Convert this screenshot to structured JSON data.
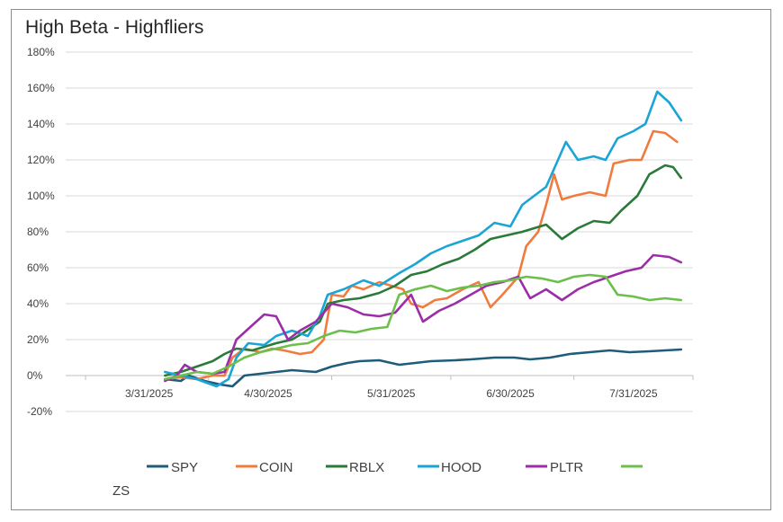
{
  "chart_data": {
    "type": "line",
    "title": "High Beta - Highfliers",
    "xlabel": "",
    "ylabel": "",
    "ylim": [
      -0.2,
      1.8
    ],
    "xlim": [
      "2025-03-10",
      "2025-08-15"
    ],
    "x_ticks": [
      "3/31/2025",
      "4/30/2025",
      "5/31/2025",
      "6/30/2025",
      "7/31/2025"
    ],
    "y_ticks": [
      "-20%",
      "0%",
      "20%",
      "40%",
      "60%",
      "80%",
      "100%",
      "120%",
      "140%",
      "160%",
      "180%"
    ],
    "grid": "horizontal",
    "legend_position": "bottom",
    "series": [
      {
        "name": "SPY",
        "color": "#1f5c7a",
        "points": [
          [
            "2025-04-04",
            -0.02
          ],
          [
            "2025-04-08",
            -0.03
          ],
          [
            "2025-04-10",
            0.0
          ],
          [
            "2025-04-14",
            -0.03
          ],
          [
            "2025-04-18",
            -0.05
          ],
          [
            "2025-04-21",
            -0.06
          ],
          [
            "2025-04-24",
            0.0
          ],
          [
            "2025-04-28",
            0.01
          ],
          [
            "2025-05-02",
            0.02
          ],
          [
            "2025-05-06",
            0.03
          ],
          [
            "2025-05-12",
            0.02
          ],
          [
            "2025-05-16",
            0.05
          ],
          [
            "2025-05-20",
            0.07
          ],
          [
            "2025-05-23",
            0.08
          ],
          [
            "2025-05-28",
            0.085
          ],
          [
            "2025-06-02",
            0.06
          ],
          [
            "2025-06-06",
            0.07
          ],
          [
            "2025-06-10",
            0.08
          ],
          [
            "2025-06-16",
            0.085
          ],
          [
            "2025-06-20",
            0.09
          ],
          [
            "2025-06-26",
            0.1
          ],
          [
            "2025-07-01",
            0.1
          ],
          [
            "2025-07-05",
            0.09
          ],
          [
            "2025-07-10",
            0.1
          ],
          [
            "2025-07-15",
            0.12
          ],
          [
            "2025-07-20",
            0.13
          ],
          [
            "2025-07-25",
            0.14
          ],
          [
            "2025-07-30",
            0.13
          ],
          [
            "2025-08-04",
            0.135
          ],
          [
            "2025-08-08",
            0.14
          ],
          [
            "2025-08-12",
            0.145
          ]
        ]
      },
      {
        "name": "COIN",
        "color": "#f07b3f",
        "points": [
          [
            "2025-04-04",
            -0.02
          ],
          [
            "2025-04-08",
            -0.01
          ],
          [
            "2025-04-12",
            -0.02
          ],
          [
            "2025-04-16",
            0.0
          ],
          [
            "2025-04-19",
            0.0
          ],
          [
            "2025-04-21",
            0.1
          ],
          [
            "2025-04-24",
            0.15
          ],
          [
            "2025-04-28",
            0.13
          ],
          [
            "2025-05-01",
            0.15
          ],
          [
            "2025-05-04",
            0.14
          ],
          [
            "2025-05-08",
            0.12
          ],
          [
            "2025-05-11",
            0.13
          ],
          [
            "2025-05-14",
            0.2
          ],
          [
            "2025-05-16",
            0.45
          ],
          [
            "2025-05-19",
            0.44
          ],
          [
            "2025-05-21",
            0.5
          ],
          [
            "2025-05-24",
            0.48
          ],
          [
            "2025-05-28",
            0.52
          ],
          [
            "2025-05-31",
            0.5
          ],
          [
            "2025-06-03",
            0.48
          ],
          [
            "2025-06-05",
            0.4
          ],
          [
            "2025-06-08",
            0.38
          ],
          [
            "2025-06-11",
            0.42
          ],
          [
            "2025-06-14",
            0.43
          ],
          [
            "2025-06-18",
            0.48
          ],
          [
            "2025-06-22",
            0.52
          ],
          [
            "2025-06-25",
            0.38
          ],
          [
            "2025-06-28",
            0.45
          ],
          [
            "2025-07-02",
            0.55
          ],
          [
            "2025-07-04",
            0.72
          ],
          [
            "2025-07-07",
            0.8
          ],
          [
            "2025-07-09",
            0.95
          ],
          [
            "2025-07-11",
            1.12
          ],
          [
            "2025-07-13",
            0.98
          ],
          [
            "2025-07-16",
            1.0
          ],
          [
            "2025-07-20",
            1.02
          ],
          [
            "2025-07-24",
            1.0
          ],
          [
            "2025-07-26",
            1.18
          ],
          [
            "2025-07-30",
            1.2
          ],
          [
            "2025-08-02",
            1.2
          ],
          [
            "2025-08-05",
            1.36
          ],
          [
            "2025-08-08",
            1.35
          ],
          [
            "2025-08-11",
            1.3
          ]
        ]
      },
      {
        "name": "RBLX",
        "color": "#2a7a39",
        "points": [
          [
            "2025-04-04",
            0.0
          ],
          [
            "2025-04-08",
            0.02
          ],
          [
            "2025-04-12",
            0.05
          ],
          [
            "2025-04-16",
            0.08
          ],
          [
            "2025-04-19",
            0.12
          ],
          [
            "2025-04-22",
            0.15
          ],
          [
            "2025-04-26",
            0.14
          ],
          [
            "2025-04-29",
            0.16
          ],
          [
            "2025-05-02",
            0.18
          ],
          [
            "2025-05-06",
            0.2
          ],
          [
            "2025-05-09",
            0.24
          ],
          [
            "2025-05-13",
            0.3
          ],
          [
            "2025-05-15",
            0.4
          ],
          [
            "2025-05-19",
            0.42
          ],
          [
            "2025-05-23",
            0.43
          ],
          [
            "2025-05-28",
            0.46
          ],
          [
            "2025-06-01",
            0.5
          ],
          [
            "2025-06-05",
            0.56
          ],
          [
            "2025-06-09",
            0.58
          ],
          [
            "2025-06-13",
            0.62
          ],
          [
            "2025-06-17",
            0.65
          ],
          [
            "2025-06-21",
            0.7
          ],
          [
            "2025-06-25",
            0.76
          ],
          [
            "2025-06-29",
            0.78
          ],
          [
            "2025-07-03",
            0.8
          ],
          [
            "2025-07-06",
            0.82
          ],
          [
            "2025-07-09",
            0.84
          ],
          [
            "2025-07-13",
            0.76
          ],
          [
            "2025-07-17",
            0.82
          ],
          [
            "2025-07-21",
            0.86
          ],
          [
            "2025-07-25",
            0.85
          ],
          [
            "2025-07-28",
            0.92
          ],
          [
            "2025-08-01",
            1.0
          ],
          [
            "2025-08-04",
            1.12
          ],
          [
            "2025-08-08",
            1.17
          ],
          [
            "2025-08-10",
            1.16
          ],
          [
            "2025-08-12",
            1.1
          ]
        ]
      },
      {
        "name": "HOOD",
        "color": "#1aa5d6",
        "points": [
          [
            "2025-04-04",
            0.02
          ],
          [
            "2025-04-08",
            0.0
          ],
          [
            "2025-04-12",
            -0.02
          ],
          [
            "2025-04-17",
            -0.06
          ],
          [
            "2025-04-20",
            -0.02
          ],
          [
            "2025-04-22",
            0.1
          ],
          [
            "2025-04-25",
            0.18
          ],
          [
            "2025-04-29",
            0.17
          ],
          [
            "2025-05-02",
            0.22
          ],
          [
            "2025-05-06",
            0.25
          ],
          [
            "2025-05-10",
            0.22
          ],
          [
            "2025-05-13",
            0.33
          ],
          [
            "2025-05-15",
            0.45
          ],
          [
            "2025-05-19",
            0.48
          ],
          [
            "2025-05-24",
            0.53
          ],
          [
            "2025-05-28",
            0.5
          ],
          [
            "2025-06-02",
            0.57
          ],
          [
            "2025-06-06",
            0.62
          ],
          [
            "2025-06-10",
            0.68
          ],
          [
            "2025-06-14",
            0.72
          ],
          [
            "2025-06-18",
            0.75
          ],
          [
            "2025-06-22",
            0.78
          ],
          [
            "2025-06-26",
            0.85
          ],
          [
            "2025-06-30",
            0.83
          ],
          [
            "2025-07-03",
            0.95
          ],
          [
            "2025-07-06",
            1.0
          ],
          [
            "2025-07-09",
            1.05
          ],
          [
            "2025-07-12",
            1.2
          ],
          [
            "2025-07-14",
            1.3
          ],
          [
            "2025-07-17",
            1.2
          ],
          [
            "2025-07-21",
            1.22
          ],
          [
            "2025-07-24",
            1.2
          ],
          [
            "2025-07-27",
            1.32
          ],
          [
            "2025-07-31",
            1.36
          ],
          [
            "2025-08-03",
            1.4
          ],
          [
            "2025-08-06",
            1.58
          ],
          [
            "2025-08-09",
            1.52
          ],
          [
            "2025-08-12",
            1.42
          ]
        ]
      },
      {
        "name": "PLTR",
        "color": "#9b2ea6",
        "points": [
          [
            "2025-04-04",
            -0.03
          ],
          [
            "2025-04-07",
            0.0
          ],
          [
            "2025-04-09",
            0.06
          ],
          [
            "2025-04-12",
            0.02
          ],
          [
            "2025-04-16",
            0.01
          ],
          [
            "2025-04-19",
            0.02
          ],
          [
            "2025-04-22",
            0.2
          ],
          [
            "2025-04-26",
            0.28
          ],
          [
            "2025-04-29",
            0.34
          ],
          [
            "2025-05-02",
            0.33
          ],
          [
            "2025-05-05",
            0.2
          ],
          [
            "2025-05-08",
            0.25
          ],
          [
            "2025-05-12",
            0.3
          ],
          [
            "2025-05-16",
            0.4
          ],
          [
            "2025-05-20",
            0.38
          ],
          [
            "2025-05-24",
            0.34
          ],
          [
            "2025-05-28",
            0.33
          ],
          [
            "2025-06-01",
            0.35
          ],
          [
            "2025-06-05",
            0.45
          ],
          [
            "2025-06-08",
            0.3
          ],
          [
            "2025-06-12",
            0.36
          ],
          [
            "2025-06-16",
            0.4
          ],
          [
            "2025-06-20",
            0.45
          ],
          [
            "2025-06-24",
            0.5
          ],
          [
            "2025-06-28",
            0.52
          ],
          [
            "2025-07-02",
            0.55
          ],
          [
            "2025-07-05",
            0.43
          ],
          [
            "2025-07-09",
            0.48
          ],
          [
            "2025-07-13",
            0.42
          ],
          [
            "2025-07-17",
            0.48
          ],
          [
            "2025-07-21",
            0.52
          ],
          [
            "2025-07-25",
            0.55
          ],
          [
            "2025-07-29",
            0.58
          ],
          [
            "2025-08-02",
            0.6
          ],
          [
            "2025-08-05",
            0.67
          ],
          [
            "2025-08-09",
            0.66
          ],
          [
            "2025-08-12",
            0.63
          ]
        ]
      },
      {
        "name": "ZS",
        "color": "#6cbf4a",
        "points": [
          [
            "2025-04-04",
            -0.02
          ],
          [
            "2025-04-08",
            0.0
          ],
          [
            "2025-04-12",
            0.02
          ],
          [
            "2025-04-16",
            0.01
          ],
          [
            "2025-04-20",
            0.05
          ],
          [
            "2025-04-24",
            0.1
          ],
          [
            "2025-04-28",
            0.13
          ],
          [
            "2025-05-02",
            0.15
          ],
          [
            "2025-05-06",
            0.17
          ],
          [
            "2025-05-10",
            0.18
          ],
          [
            "2025-05-14",
            0.22
          ],
          [
            "2025-05-18",
            0.25
          ],
          [
            "2025-05-22",
            0.24
          ],
          [
            "2025-05-26",
            0.26
          ],
          [
            "2025-05-30",
            0.27
          ],
          [
            "2025-06-02",
            0.45
          ],
          [
            "2025-06-06",
            0.48
          ],
          [
            "2025-06-10",
            0.5
          ],
          [
            "2025-06-14",
            0.47
          ],
          [
            "2025-06-18",
            0.49
          ],
          [
            "2025-06-22",
            0.5
          ],
          [
            "2025-06-26",
            0.52
          ],
          [
            "2025-06-30",
            0.53
          ],
          [
            "2025-07-04",
            0.55
          ],
          [
            "2025-07-08",
            0.54
          ],
          [
            "2025-07-12",
            0.52
          ],
          [
            "2025-07-16",
            0.55
          ],
          [
            "2025-07-20",
            0.56
          ],
          [
            "2025-07-24",
            0.55
          ],
          [
            "2025-07-27",
            0.45
          ],
          [
            "2025-07-31",
            0.44
          ],
          [
            "2025-08-04",
            0.42
          ],
          [
            "2025-08-08",
            0.43
          ],
          [
            "2025-08-12",
            0.42
          ]
        ]
      }
    ]
  }
}
